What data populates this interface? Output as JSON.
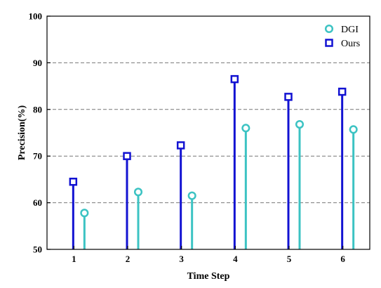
{
  "colors": {
    "ours": "#1212D2",
    "dgi": "#3CC3C3",
    "grid": "#777777",
    "axis": "#000000"
  },
  "chart_data": {
    "type": "stem",
    "title": "",
    "xlabel": "Time Step",
    "ylabel": "Precision(%)",
    "categories": [
      "1",
      "2",
      "3",
      "4",
      "5",
      "6"
    ],
    "ylim": [
      50,
      100
    ],
    "yticks": [
      "50",
      "60",
      "70",
      "80",
      "90",
      "100"
    ],
    "grid": "horizontal dashed",
    "legend_position": "top-right",
    "series": [
      {
        "name": "Ours",
        "marker": "square-icon",
        "color": "#1212D2",
        "values": [
          64.5,
          70.0,
          72.3,
          86.5,
          82.7,
          83.8
        ]
      },
      {
        "name": "DGI",
        "marker": "circle-icon",
        "color": "#3CC3C3",
        "values": [
          57.8,
          62.3,
          61.5,
          76.0,
          76.8,
          75.7
        ]
      }
    ],
    "legend_order": [
      "DGI",
      "Ours"
    ]
  }
}
